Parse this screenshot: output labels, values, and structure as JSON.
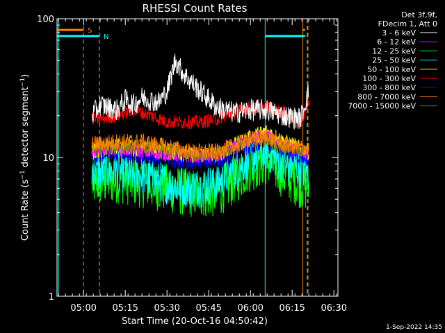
{
  "chart_data": {
    "type": "line",
    "title": "RHESSI Count Rates",
    "xlabel": "Start Time (20-Oct-16 04:50:42)",
    "ylabel_main": "Count Rate (s",
    "ylabel_sup": "−1",
    "ylabel_tail": " detector segment",
    "ylabel_end": ")",
    "x_range_min": [
      4.841,
      6.524
    ],
    "y_range": [
      1,
      100
    ],
    "y_scale": "log",
    "x_ticks": [
      {
        "t": 5.0,
        "label": "05:00"
      },
      {
        "t": 5.25,
        "label": "05:15"
      },
      {
        "t": 5.5,
        "label": "05:30"
      },
      {
        "t": 5.75,
        "label": "05:45"
      },
      {
        "t": 6.0,
        "label": "06:00"
      },
      {
        "t": 6.25,
        "label": "06:15"
      },
      {
        "t": 6.5,
        "label": "06:30"
      }
    ],
    "y_ticks": [
      {
        "v": 1,
        "label": "1"
      },
      {
        "v": 10,
        "label": "10"
      },
      {
        "v": 100,
        "label": "100"
      }
    ],
    "legend_header": [
      "Det 3f,9f,",
      "FDecim 1, Att 0"
    ],
    "legend_position": "top-right",
    "series": [
      {
        "name": "3 - 6 keV",
        "color": "#ffffff",
        "x": [
          5.05,
          5.1,
          5.2,
          5.25,
          5.3,
          5.35,
          5.45,
          5.5,
          5.55,
          5.6,
          5.7,
          5.8,
          5.9,
          6.0,
          6.1,
          6.2,
          6.3,
          6.35
        ],
        "y": [
          20,
          24,
          22,
          26,
          24,
          27,
          25,
          30,
          50,
          40,
          30,
          23,
          21,
          22,
          22,
          20,
          19,
          30
        ]
      },
      {
        "name": "6 - 12 keV",
        "color": "#ff00ff",
        "x": [
          5.05,
          5.2,
          5.35,
          5.5,
          5.65,
          5.8,
          6.0,
          6.1,
          6.2,
          6.35
        ],
        "y": [
          11.0,
          11.5,
          11.0,
          10.5,
          10.2,
          10.2,
          13.5,
          14.5,
          12.0,
          10.5
        ]
      },
      {
        "name": "12 - 25 keV",
        "color": "#00ff00",
        "x": [
          5.05,
          5.2,
          5.35,
          5.5,
          5.65,
          5.8,
          6.0,
          6.1,
          6.2,
          6.35
        ],
        "y": [
          6.5,
          7.0,
          6.5,
          6.0,
          5.5,
          5.5,
          8.5,
          9.5,
          7.5,
          6.0
        ]
      },
      {
        "name": "25 - 50 keV",
        "color": "#00ffff",
        "x": [
          5.05,
          5.2,
          5.35,
          5.5,
          5.65,
          5.8,
          6.0,
          6.1,
          6.2,
          6.35
        ],
        "y": [
          8.0,
          8.0,
          7.5,
          6.5,
          6.0,
          6.5,
          10.0,
          11.0,
          9.0,
          8.0
        ]
      },
      {
        "name": "50 - 100 keV",
        "color": "#ffff00",
        "x": [
          5.05,
          5.2,
          5.35,
          5.5,
          5.65,
          5.8,
          6.0,
          6.1,
          6.2,
          6.35
        ],
        "y": [
          11.0,
          12.0,
          11.5,
          11.0,
          10.5,
          10.5,
          14.0,
          15.5,
          13.0,
          11.0
        ]
      },
      {
        "name": "100 - 300 keV",
        "color": "#ff0000",
        "x": [
          5.05,
          5.1,
          5.2,
          5.3,
          5.4,
          5.5,
          5.6,
          5.7,
          5.8,
          5.9,
          6.0,
          6.1,
          6.2,
          6.3,
          6.35
        ],
        "y": [
          19,
          19,
          20,
          22,
          20,
          18,
          18,
          18,
          19,
          21,
          23,
          23,
          21,
          18,
          25
        ]
      },
      {
        "name": "300 - 800 keV",
        "color": "#0000ff",
        "x": [
          5.05,
          5.2,
          5.35,
          5.5,
          5.65,
          5.8,
          6.0,
          6.1,
          6.2,
          6.35
        ],
        "y": [
          10.5,
          11.0,
          10.5,
          10.0,
          9.5,
          9.5,
          12.5,
          13.5,
          11.5,
          10.0
        ]
      },
      {
        "name": "800 - 7000 keV",
        "color": "#ff8000",
        "x": [
          5.05,
          5.2,
          5.35,
          5.5,
          5.65,
          5.8,
          6.0,
          6.1,
          6.2,
          6.35
        ],
        "y": [
          12.5,
          13.0,
          13.0,
          12.0,
          11.0,
          11.0,
          13.5,
          14.0,
          12.5,
          11.5
        ]
      },
      {
        "name": "7000 - 15000 keV",
        "color": "#808000",
        "x": [
          5.05,
          5.2,
          5.35,
          5.5,
          5.65,
          5.8,
          6.0,
          6.1,
          6.2,
          6.35
        ],
        "y": [
          11.5,
          12.0,
          12.0,
          11.5,
          10.5,
          10.5,
          13.0,
          13.5,
          12.0,
          11.0
        ]
      }
    ],
    "markers": [
      {
        "label": "S",
        "color": "#ff8000",
        "segments": [
          [
            4.841,
            5.0
          ],
          [
            6.314,
            6.327
          ]
        ],
        "level": 83
      },
      {
        "label": "N",
        "color": "#00ffff",
        "segments": [
          [
            4.841,
            5.095
          ],
          [
            6.088,
            6.327
          ]
        ],
        "level": 75
      }
    ],
    "vlines": [
      {
        "t": 4.85,
        "color": "#00ffff",
        "style": "solid"
      },
      {
        "t": 5.0,
        "color": "#ff8000",
        "style": "dashed"
      },
      {
        "t": 5.095,
        "color": "#00ffff",
        "style": "dashed"
      },
      {
        "t": 6.088,
        "color": "#00ffff",
        "style": "solid"
      },
      {
        "t": 6.314,
        "color": "#ff8000",
        "style": "solid"
      },
      {
        "t": 6.34,
        "color": "#00ffff",
        "style": "dashed"
      },
      {
        "t": 6.345,
        "color": "#ff8000",
        "style": "dashed"
      }
    ],
    "grid": false
  },
  "footer": {
    "timestamp": "1-Sep-2022 14:35"
  }
}
